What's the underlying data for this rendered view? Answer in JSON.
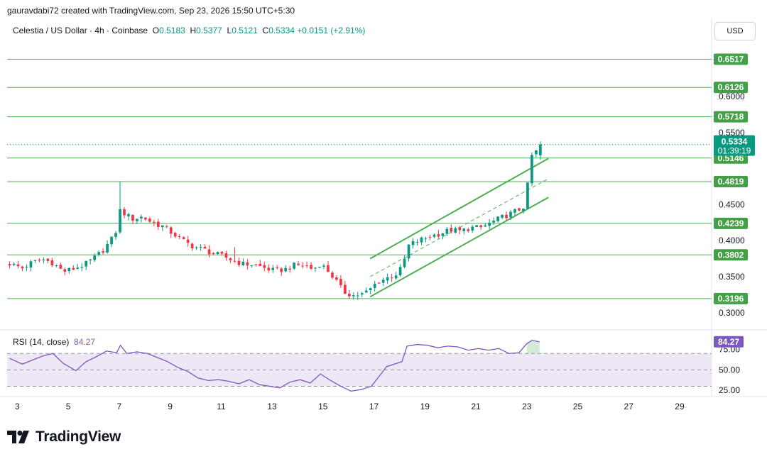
{
  "header": {
    "attribution": "gauravdabi72 created with TradingView.com, Sep 23, 2026 15:50 UTC+5:30"
  },
  "legend": {
    "symbol": "Celestia / US Dollar · 4h · Coinbase",
    "open_label": "O",
    "open": "0.5183",
    "high_label": "H",
    "high": "0.5377",
    "low_label": "L",
    "low": "0.5121",
    "close_label": "C",
    "close": "0.5334",
    "change": "+0.0151 (+2.91%)"
  },
  "currency_button": "USD",
  "rsi_legend": {
    "label": "RSI (14, close)",
    "value": "84.27"
  },
  "logo_text": "TradingView",
  "colors": {
    "up": "#089981",
    "down": "#f23645",
    "level": "#4caf50",
    "channel": "#4caf50",
    "rsi_line": "#7e57c2",
    "rsi_band": "#ede7f6",
    "label_bg": "#43a047",
    "price_tag": "#089981",
    "rsi_tag": "#7e57c2"
  },
  "chart_data": [
    {
      "type": "candlestick",
      "title": "Celestia / US Dollar · 4h · Coinbase",
      "y_axis_ticks": [
        "0.6000",
        "0.5500",
        "0.4500",
        "0.4000",
        "0.3500",
        "0.3000"
      ],
      "y_range": [
        0.285,
        0.665
      ],
      "x_axis_ticks": [
        "3",
        "5",
        "7",
        "9",
        "11",
        "13",
        "15",
        "17",
        "19",
        "21",
        "23",
        "25",
        "27",
        "29"
      ],
      "x_range_days": [
        2.6,
        30.2
      ],
      "support_resistance_levels": [
        "0.6517",
        "0.6126",
        "0.5718",
        "0.5146",
        "0.4819",
        "0.4239",
        "0.3802",
        "0.3196"
      ],
      "last_price_tag": {
        "price": "0.5334",
        "countdown": "01:39:19"
      },
      "channel": {
        "upper": [
          [
            16.85,
            0.375
          ],
          [
            23.85,
            0.514
          ]
        ],
        "middle": [
          [
            16.85,
            0.35
          ],
          [
            23.85,
            0.486
          ]
        ],
        "lower": [
          [
            16.85,
            0.322
          ],
          [
            23.85,
            0.46
          ]
        ]
      },
      "close_path_anchors": [
        [
          2.7,
          0.368
        ],
        [
          3.2,
          0.362
        ],
        [
          3.6,
          0.37
        ],
        [
          4.0,
          0.374
        ],
        [
          4.4,
          0.369
        ],
        [
          4.8,
          0.357
        ],
        [
          5.3,
          0.362
        ],
        [
          5.7,
          0.368
        ],
        [
          6.1,
          0.378
        ],
        [
          6.4,
          0.388
        ],
        [
          6.7,
          0.402
        ],
        [
          6.95,
          0.418
        ],
        [
          7.05,
          0.446
        ],
        [
          7.2,
          0.438
        ],
        [
          7.5,
          0.43
        ],
        [
          7.9,
          0.433
        ],
        [
          8.3,
          0.425
        ],
        [
          8.7,
          0.42
        ],
        [
          9.1,
          0.41
        ],
        [
          9.5,
          0.4
        ],
        [
          9.9,
          0.392
        ],
        [
          10.3,
          0.388
        ],
        [
          10.7,
          0.382
        ],
        [
          11.1,
          0.378
        ],
        [
          11.5,
          0.372
        ],
        [
          11.9,
          0.367
        ],
        [
          12.3,
          0.367
        ],
        [
          12.7,
          0.362
        ],
        [
          13.1,
          0.358
        ],
        [
          13.5,
          0.36
        ],
        [
          13.9,
          0.366
        ],
        [
          14.3,
          0.366
        ],
        [
          14.6,
          0.36
        ],
        [
          14.9,
          0.368
        ],
        [
          15.2,
          0.358
        ],
        [
          15.5,
          0.345
        ],
        [
          15.8,
          0.329
        ],
        [
          16.2,
          0.324
        ],
        [
          16.6,
          0.326
        ],
        [
          16.9,
          0.334
        ],
        [
          17.1,
          0.342
        ],
        [
          17.5,
          0.348
        ],
        [
          17.9,
          0.354
        ],
        [
          18.15,
          0.365
        ],
        [
          18.3,
          0.392
        ],
        [
          18.6,
          0.398
        ],
        [
          18.9,
          0.402
        ],
        [
          19.2,
          0.406
        ],
        [
          19.6,
          0.41
        ],
        [
          20.0,
          0.415
        ],
        [
          20.4,
          0.413
        ],
        [
          20.8,
          0.418
        ],
        [
          21.2,
          0.418
        ],
        [
          21.6,
          0.425
        ],
        [
          22.0,
          0.432
        ],
        [
          22.4,
          0.438
        ],
        [
          22.8,
          0.445
        ],
        [
          22.95,
          0.45
        ],
        [
          23.05,
          0.482
        ],
        [
          23.2,
          0.518
        ],
        [
          23.35,
          0.522
        ],
        [
          23.5,
          0.5334
        ]
      ]
    },
    {
      "type": "line",
      "title": "RSI (14, close)",
      "y_axis_ticks": [
        "75.00",
        "50.00",
        "25.00"
      ],
      "y_range": [
        20,
        91
      ],
      "bands": {
        "upper": 70,
        "middle": 50,
        "lower": 30
      },
      "current_value": "84.27",
      "x": [
        2.7,
        3.2,
        3.6,
        4.0,
        4.4,
        4.8,
        5.3,
        5.7,
        6.1,
        6.5,
        6.9,
        7.05,
        7.3,
        7.7,
        8.1,
        8.5,
        8.9,
        9.3,
        9.7,
        10.1,
        10.5,
        10.9,
        11.3,
        11.7,
        12.1,
        12.5,
        12.9,
        13.3,
        13.7,
        14.1,
        14.5,
        14.9,
        15.3,
        15.7,
        16.1,
        16.5,
        16.9,
        17.1,
        17.5,
        17.9,
        18.1,
        18.3,
        18.7,
        19.1,
        19.5,
        19.9,
        20.3,
        20.7,
        21.1,
        21.5,
        21.9,
        22.3,
        22.7,
        23.0,
        23.2,
        23.5
      ],
      "values": [
        64,
        57,
        62,
        67,
        70,
        58,
        49,
        60,
        66,
        73,
        71,
        80,
        70,
        72,
        70,
        65,
        60,
        53,
        48,
        40,
        37,
        38,
        36,
        33,
        38,
        32,
        30,
        28,
        35,
        38,
        34,
        45,
        37,
        30,
        24,
        26,
        30,
        38,
        54,
        58,
        60,
        79,
        81,
        80,
        77,
        79,
        78,
        74,
        76,
        74,
        76,
        70,
        71,
        82,
        86,
        84.27
      ]
    }
  ]
}
